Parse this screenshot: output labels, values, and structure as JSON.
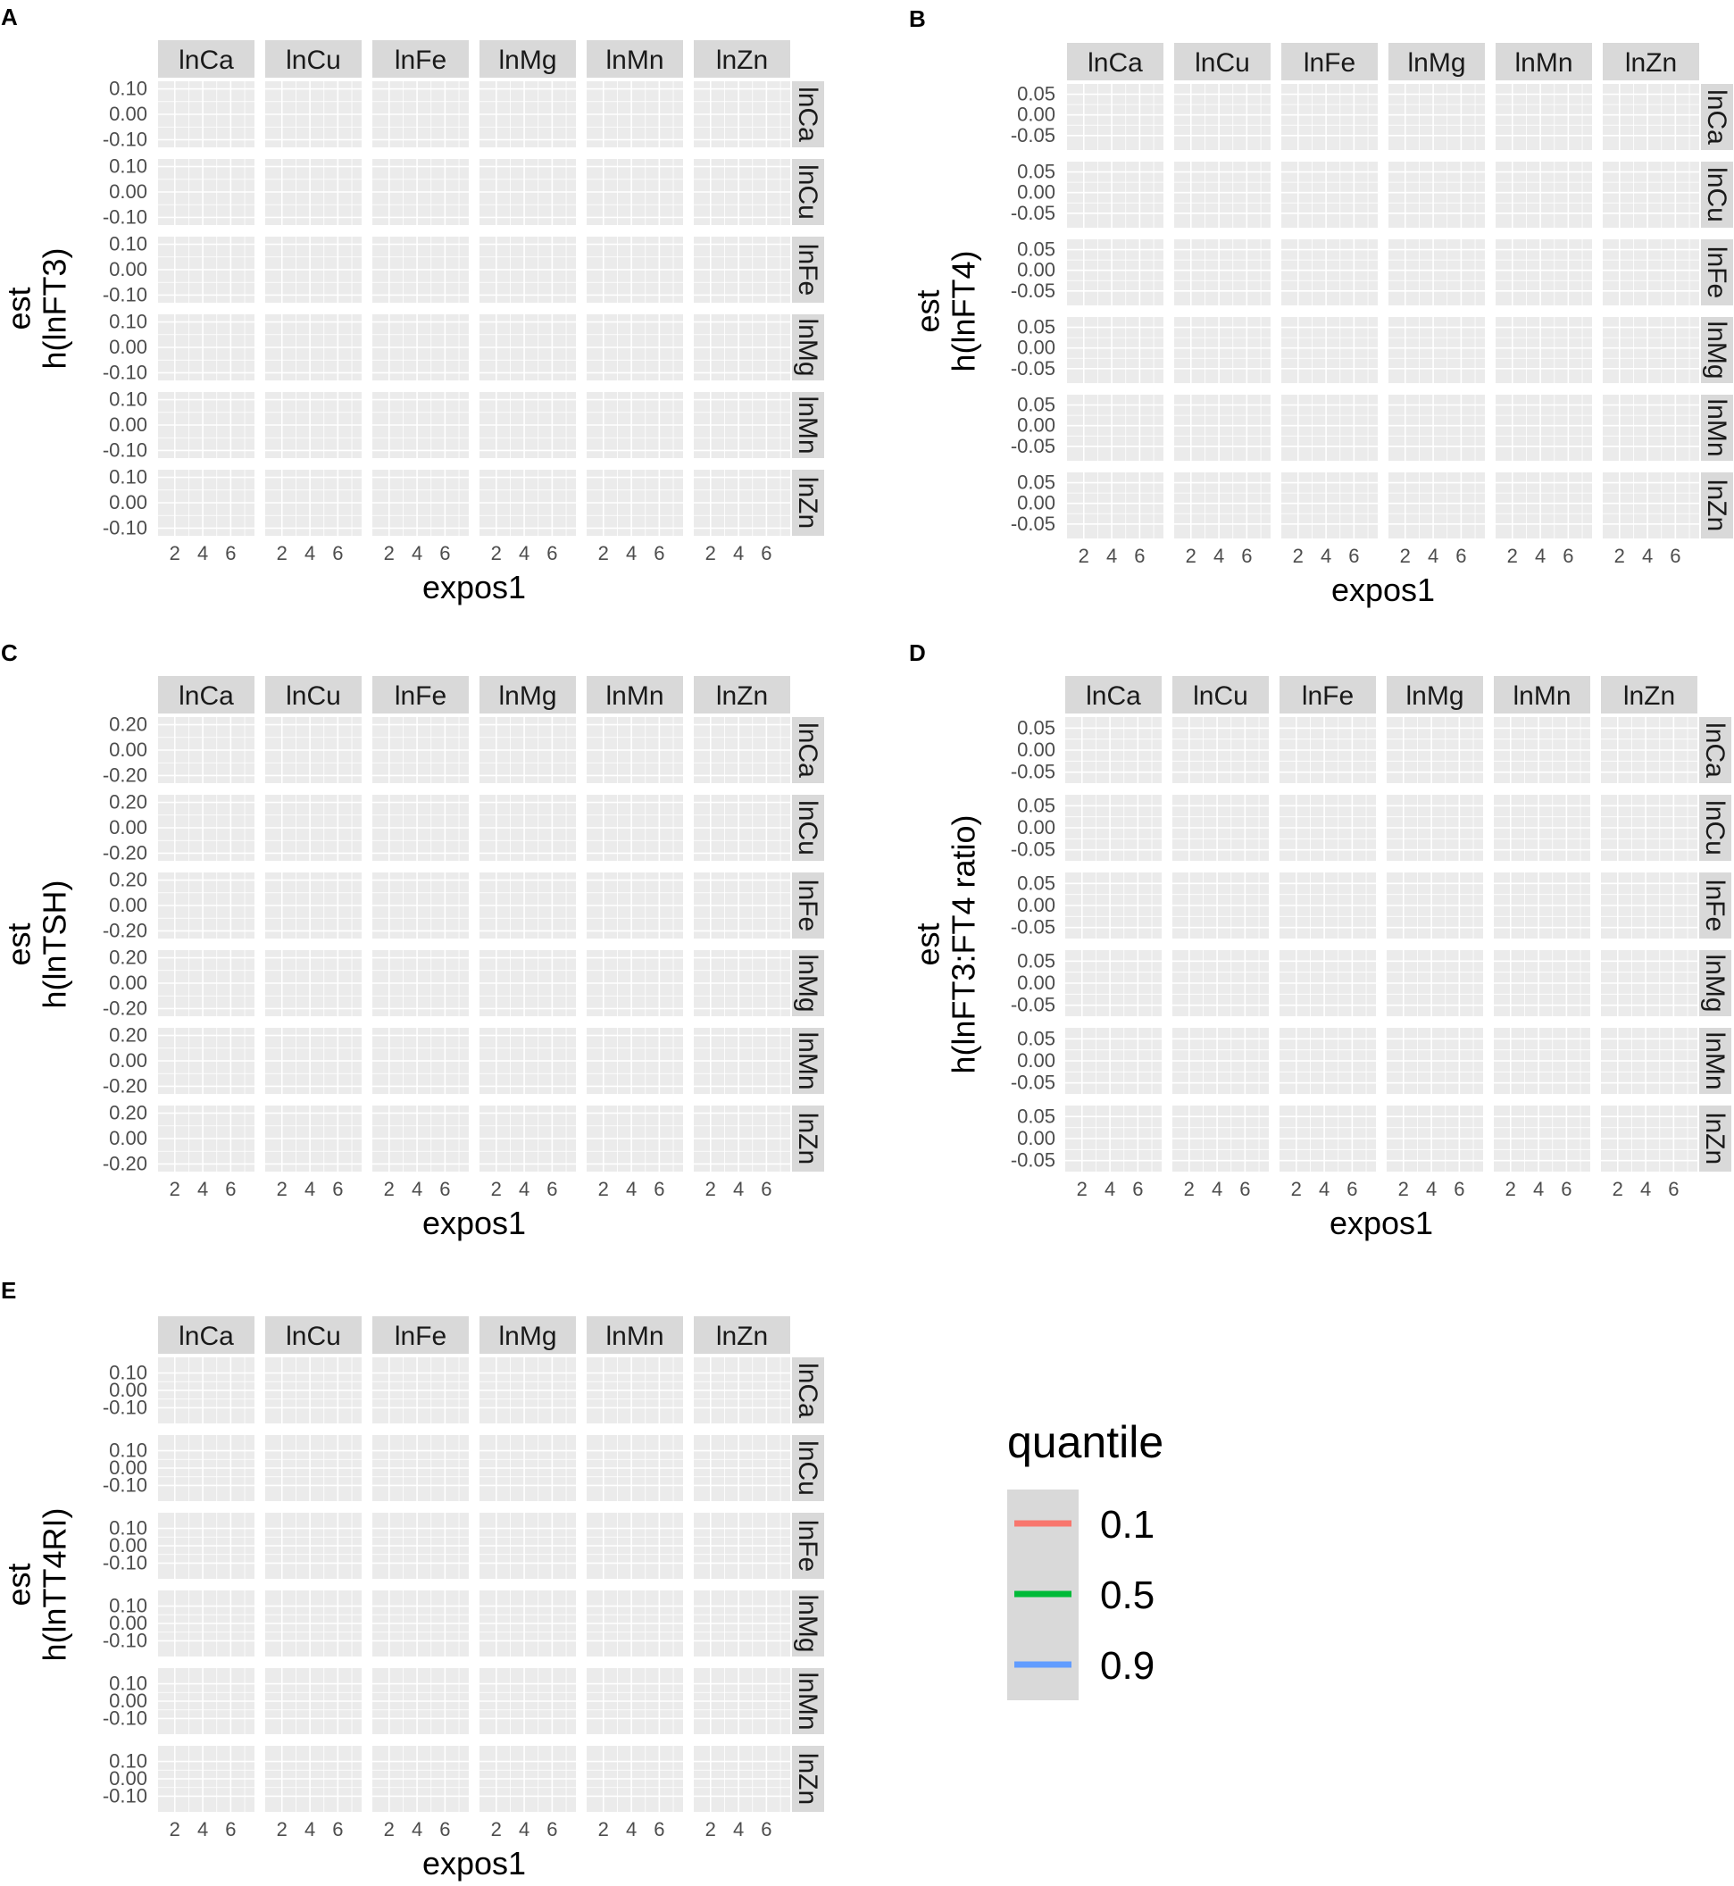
{
  "chart_data": [
    {
      "label": "A",
      "type": "line",
      "facets": [
        "lnCa",
        "lnCu",
        "lnFe",
        "lnMg",
        "lnMn",
        "lnZn"
      ],
      "ylabel_top": "est",
      "ylabel": "h(lnFT3)",
      "xlabel": "expos1",
      "x_ticks": [
        "2",
        "4",
        "6"
      ],
      "y_ticks": [
        "0.10",
        "0.00",
        "-0.10"
      ],
      "ylim": [
        -0.13,
        0.13
      ],
      "cells": [
        [
          null,
          null,
          null,
          null,
          null,
          null
        ],
        [
          null,
          null,
          null,
          null,
          null,
          null
        ],
        [
          null,
          null,
          null,
          null,
          null,
          null
        ],
        [
          null,
          null,
          null,
          null,
          null,
          null
        ],
        [
          null,
          null,
          null,
          null,
          null,
          null
        ],
        [
          null,
          null,
          null,
          null,
          null,
          null
        ]
      ]
    },
    {
      "label": "B",
      "type": "line",
      "facets": [
        "lnCa",
        "lnCu",
        "lnFe",
        "lnMg",
        "lnMn",
        "lnZn"
      ],
      "ylabel_top": "est",
      "ylabel": "h(lnFT4)",
      "xlabel": "expos1",
      "x_ticks": [
        "2",
        "4",
        "6"
      ],
      "y_ticks": [
        "0.05",
        "0.00",
        "-0.05"
      ],
      "ylim": [
        -0.085,
        0.075
      ],
      "cells": [
        [
          null,
          null,
          null,
          null,
          null,
          null
        ],
        [
          null,
          null,
          null,
          null,
          null,
          null
        ],
        [
          null,
          null,
          null,
          null,
          null,
          null
        ],
        [
          null,
          null,
          null,
          null,
          null,
          null
        ],
        [
          null,
          null,
          null,
          null,
          null,
          null
        ],
        [
          null,
          null,
          null,
          null,
          null,
          null
        ]
      ]
    },
    {
      "label": "C",
      "type": "line",
      "facets": [
        "lnCa",
        "lnCu",
        "lnFe",
        "lnMg",
        "lnMn",
        "lnZn"
      ],
      "ylabel_top": "est",
      "ylabel": "h(lnTSH)",
      "xlabel": "expos1",
      "x_ticks": [
        "2",
        "4",
        "6"
      ],
      "y_ticks": [
        "0.20",
        "0.00",
        "-0.20"
      ],
      "ylim": [
        -0.26,
        0.26
      ],
      "cells": [
        [
          null,
          null,
          null,
          null,
          null,
          null
        ],
        [
          null,
          null,
          null,
          null,
          null,
          null
        ],
        [
          null,
          null,
          null,
          null,
          null,
          null
        ],
        [
          null,
          null,
          null,
          null,
          null,
          null
        ],
        [
          null,
          null,
          null,
          null,
          null,
          null
        ],
        [
          null,
          null,
          null,
          null,
          null,
          null
        ]
      ]
    },
    {
      "label": "D",
      "type": "line",
      "facets": [
        "lnCa",
        "lnCu",
        "lnFe",
        "lnMg",
        "lnMn",
        "lnZn"
      ],
      "ylabel_top": "est",
      "ylabel": "h(lnFT3:FT4 ratio)",
      "xlabel": "expos1",
      "x_ticks": [
        "2",
        "4",
        "6"
      ],
      "y_ticks": [
        "0.05",
        "0.00",
        "-0.05"
      ],
      "ylim": [
        -0.075,
        0.075
      ],
      "cells": [
        [
          null,
          null,
          null,
          null,
          null,
          null
        ],
        [
          null,
          null,
          null,
          null,
          null,
          null
        ],
        [
          null,
          null,
          null,
          null,
          null,
          null
        ],
        [
          null,
          null,
          null,
          null,
          null,
          null
        ],
        [
          null,
          null,
          null,
          null,
          null,
          null
        ],
        [
          null,
          null,
          null,
          null,
          null,
          null
        ]
      ]
    },
    {
      "label": "E",
      "type": "line",
      "facets": [
        "lnCa",
        "lnCu",
        "lnFe",
        "lnMg",
        "lnMn",
        "lnZn"
      ],
      "ylabel_top": "est",
      "ylabel": "h(lnTT4RI)",
      "xlabel": "expos1",
      "x_ticks": [
        "2",
        "4",
        "6"
      ],
      "y_ticks": [
        "0.10",
        "0.00",
        "-0.10"
      ],
      "ylim": [
        -0.19,
        0.19
      ],
      "cells": [
        [
          null,
          null,
          null,
          null,
          null,
          null
        ],
        [
          null,
          null,
          null,
          null,
          null,
          null
        ],
        [
          null,
          null,
          null,
          null,
          null,
          null
        ],
        [
          null,
          null,
          null,
          null,
          null,
          null
        ],
        [
          null,
          null,
          null,
          null,
          null,
          null
        ],
        [
          null,
          null,
          null,
          null,
          null,
          null
        ]
      ]
    }
  ],
  "xlim": [
    0.8,
    7.7
  ],
  "legend": {
    "title": "quantile",
    "placement": "right of panel E",
    "entries": [
      {
        "label": "0.1",
        "color": "#F8766D"
      },
      {
        "label": "0.5",
        "color": "#00BA38"
      },
      {
        "label": "0.9",
        "color": "#619CFF"
      }
    ]
  },
  "colors": {
    "panel_bg": "#EBEBEB",
    "grid": "#FFFFFF",
    "strip_bg": "#D9D9D9",
    "q01": "#F8766D",
    "q05": "#00BA38",
    "q09": "#619CFF"
  }
}
